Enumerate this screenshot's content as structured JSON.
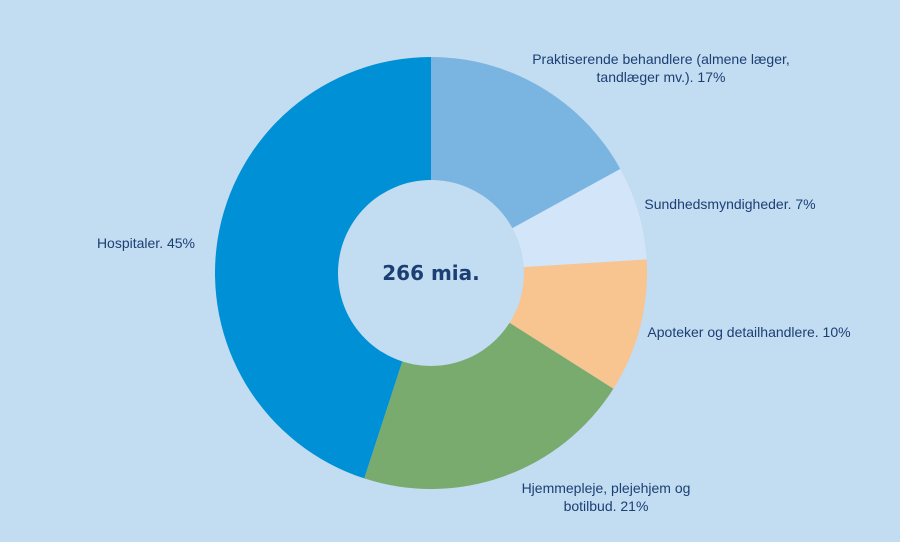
{
  "chart_data": {
    "type": "pie",
    "donut": true,
    "center_text": "266 mia.",
    "slices": [
      {
        "lines": [
          "Praktiserende behandlere (almene læger,",
          "tandlæger mv.). 17%"
        ],
        "value": 17,
        "color": "#7ab5e2"
      },
      {
        "lines": [
          "Sundhedsmyndigheder. 7%"
        ],
        "value": 7,
        "color": "#d3e6f9"
      },
      {
        "lines": [
          "Apoteker og detailhandlere. 10%"
        ],
        "value": 10,
        "color": "#f8c48f"
      },
      {
        "lines": [
          "Hjemmepleje, plejehjem og",
          "botilbud. 21%"
        ],
        "value": 21,
        "color": "#79aa6e"
      },
      {
        "lines": [
          "Hospitaler. 45%"
        ],
        "value": 45,
        "color": "#0090d5"
      }
    ],
    "legend": "none",
    "label_placement": "outside"
  }
}
